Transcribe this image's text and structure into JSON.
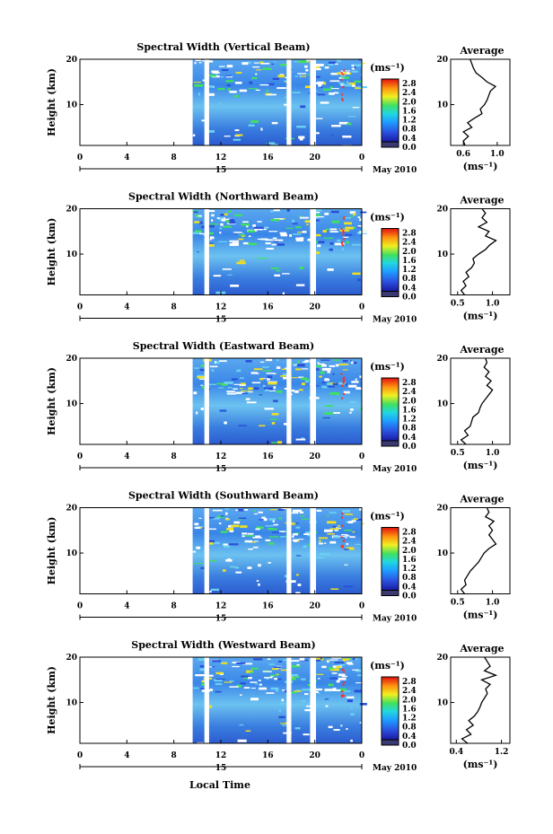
{
  "page": {
    "xlabel": "Local Time"
  },
  "chart_data": [
    {
      "type": "heatmap",
      "title": "Spectral Width (Vertical Beam)",
      "ylabel": "Height (km)",
      "x_ticks": [
        "0",
        "4",
        "8",
        "12",
        "16",
        "20",
        "0"
      ],
      "y_ticks": [
        "10",
        "20"
      ],
      "xlim": [
        0,
        24
      ],
      "ylim": [
        1,
        20
      ],
      "date_tick": "15",
      "date_label": "May 2010",
      "gaps": [
        [
          10.6,
          11.0
        ],
        [
          17.6,
          18.0
        ],
        [
          19.6,
          20.1
        ]
      ],
      "data_start": 9.6,
      "colorbar": {
        "unit": "(ms⁻¹)",
        "ticks": [
          "2.8",
          "2.4",
          "2.0",
          "1.6",
          "1.2",
          "0.8",
          "0.4",
          "0.0"
        ]
      },
      "average": {
        "title": "Average",
        "xlabel": "(ms⁻¹)",
        "x_ticks": [
          "0.6",
          "1.0"
        ],
        "y_ticks": [
          "10",
          "20"
        ],
        "xlim": [
          0.45,
          1.15
        ],
        "profile": [
          [
            1,
            0.62
          ],
          [
            2,
            0.6
          ],
          [
            3,
            0.66
          ],
          [
            4,
            0.6
          ],
          [
            5,
            0.7
          ],
          [
            6,
            0.65
          ],
          [
            7,
            0.73
          ],
          [
            8,
            0.82
          ],
          [
            9,
            0.8
          ],
          [
            10,
            0.85
          ],
          [
            11,
            0.88
          ],
          [
            12,
            0.9
          ],
          [
            13,
            0.92
          ],
          [
            14,
            0.98
          ],
          [
            15,
            0.88
          ],
          [
            16,
            0.82
          ],
          [
            17,
            0.75
          ],
          [
            18,
            0.72
          ],
          [
            19,
            0.7
          ],
          [
            20,
            0.68
          ]
        ]
      }
    },
    {
      "type": "heatmap",
      "title": "Spectral Width (Northward Beam)",
      "ylabel": "Height (km)",
      "x_ticks": [
        "0",
        "4",
        "8",
        "12",
        "16",
        "20",
        "0"
      ],
      "y_ticks": [
        "10",
        "20"
      ],
      "xlim": [
        0,
        24
      ],
      "ylim": [
        1,
        20
      ],
      "date_tick": "15",
      "date_label": "May 2010",
      "gaps": [
        [
          10.6,
          11.0
        ],
        [
          19.6,
          20.1
        ]
      ],
      "data_start": 9.6,
      "colorbar": {
        "unit": "(ms⁻¹)",
        "ticks": [
          "2.8",
          "2.4",
          "2.0",
          "1.6",
          "1.2",
          "0.8",
          "0.4",
          "0.0"
        ]
      },
      "average": {
        "title": "Average",
        "xlabel": "(ms⁻¹)",
        "x_ticks": [
          "0.5",
          "1.0"
        ],
        "y_ticks": [
          "10",
          "20"
        ],
        "xlim": [
          0.4,
          1.25
        ],
        "profile": [
          [
            1,
            0.6
          ],
          [
            2,
            0.55
          ],
          [
            3,
            0.62
          ],
          [
            4,
            0.58
          ],
          [
            5,
            0.66
          ],
          [
            6,
            0.62
          ],
          [
            7,
            0.7
          ],
          [
            8,
            0.74
          ],
          [
            9,
            0.72
          ],
          [
            10,
            0.8
          ],
          [
            11,
            0.9
          ],
          [
            12,
            0.96
          ],
          [
            13,
            1.05
          ],
          [
            14,
            0.9
          ],
          [
            15,
            0.95
          ],
          [
            16,
            0.8
          ],
          [
            17,
            0.92
          ],
          [
            18,
            0.85
          ],
          [
            19,
            0.9
          ],
          [
            20,
            0.85
          ]
        ]
      }
    },
    {
      "type": "heatmap",
      "title": "Spectral Width (Eastward Beam)",
      "ylabel": "Height (km)",
      "x_ticks": [
        "0",
        "4",
        "8",
        "12",
        "16",
        "20",
        "0"
      ],
      "y_ticks": [
        "10",
        "20"
      ],
      "xlim": [
        0,
        24
      ],
      "ylim": [
        1,
        20
      ],
      "date_tick": "15",
      "date_label": "May 2010",
      "gaps": [
        [
          10.6,
          11.0
        ],
        [
          17.6,
          18.0
        ],
        [
          19.6,
          20.1
        ]
      ],
      "data_start": 9.6,
      "colorbar": {
        "unit": "(ms⁻¹)",
        "ticks": [
          "2.8",
          "2.4",
          "2.0",
          "1.6",
          "1.2",
          "0.8",
          "0.4",
          "0.0"
        ]
      },
      "average": {
        "title": "Average",
        "xlabel": "(ms⁻¹)",
        "x_ticks": [
          "0.5",
          "1.0"
        ],
        "y_ticks": [
          "10",
          "20"
        ],
        "xlim": [
          0.4,
          1.25
        ],
        "profile": [
          [
            1,
            0.62
          ],
          [
            2,
            0.55
          ],
          [
            3,
            0.65
          ],
          [
            4,
            0.6
          ],
          [
            5,
            0.68
          ],
          [
            6,
            0.7
          ],
          [
            7,
            0.72
          ],
          [
            8,
            0.8
          ],
          [
            9,
            0.82
          ],
          [
            10,
            0.85
          ],
          [
            11,
            0.9
          ],
          [
            12,
            0.95
          ],
          [
            13,
            1.0
          ],
          [
            14,
            0.92
          ],
          [
            15,
            0.98
          ],
          [
            16,
            0.9
          ],
          [
            17,
            0.95
          ],
          [
            18,
            0.88
          ],
          [
            19,
            0.92
          ],
          [
            20,
            0.9
          ]
        ]
      }
    },
    {
      "type": "heatmap",
      "title": "Spectral Width (Southward Beam)",
      "ylabel": "Height (km)",
      "x_ticks": [
        "0",
        "4",
        "8",
        "12",
        "16",
        "20",
        "0"
      ],
      "y_ticks": [
        "10",
        "20"
      ],
      "xlim": [
        0,
        24
      ],
      "ylim": [
        1,
        20
      ],
      "date_tick": "15",
      "date_label": "May 2010",
      "gaps": [
        [
          10.6,
          11.0
        ],
        [
          17.6,
          18.0
        ],
        [
          19.6,
          20.1
        ]
      ],
      "data_start": 9.6,
      "colorbar": {
        "unit": "(ms⁻¹)",
        "ticks": [
          "2.8",
          "2.4",
          "2.0",
          "1.6",
          "1.2",
          "0.8",
          "0.4",
          "0.0"
        ]
      },
      "average": {
        "title": "Average",
        "xlabel": "(ms⁻¹)",
        "x_ticks": [
          "0.5",
          "1.0"
        ],
        "y_ticks": [
          "10",
          "20"
        ],
        "xlim": [
          0.4,
          1.25
        ],
        "profile": [
          [
            1,
            0.6
          ],
          [
            2,
            0.55
          ],
          [
            3,
            0.62
          ],
          [
            4,
            0.6
          ],
          [
            5,
            0.64
          ],
          [
            6,
            0.68
          ],
          [
            7,
            0.74
          ],
          [
            8,
            0.8
          ],
          [
            9,
            0.84
          ],
          [
            10,
            0.88
          ],
          [
            11,
            0.95
          ],
          [
            12,
            1.05
          ],
          [
            13,
            1.0
          ],
          [
            14,
            0.95
          ],
          [
            15,
            1.0
          ],
          [
            16,
            0.95
          ],
          [
            17,
            1.02
          ],
          [
            18,
            0.9
          ],
          [
            19,
            0.95
          ],
          [
            20,
            0.92
          ]
        ]
      }
    },
    {
      "type": "heatmap",
      "title": "Spectral Width (Westward Beam)",
      "ylabel": "Height (km)",
      "x_ticks": [
        "0",
        "4",
        "8",
        "12",
        "16",
        "20",
        "0"
      ],
      "y_ticks": [
        "10",
        "20"
      ],
      "xlim": [
        0,
        24
      ],
      "ylim": [
        1,
        20
      ],
      "date_tick": "15",
      "date_label": "May 2010",
      "gaps": [
        [
          10.6,
          11.0
        ],
        [
          17.6,
          18.0
        ],
        [
          19.6,
          20.1
        ]
      ],
      "data_start": 9.6,
      "colorbar": {
        "unit": "(ms⁻¹)",
        "ticks": [
          "2.8",
          "2.4",
          "2.0",
          "1.6",
          "1.2",
          "0.8",
          "0.4",
          "0.0"
        ]
      },
      "average": {
        "title": "Average",
        "xlabel": "(ms⁻¹)",
        "x_ticks": [
          "0.4",
          "1.2"
        ],
        "y_ticks": [
          "10",
          "20"
        ],
        "xlim": [
          0.3,
          1.35
        ],
        "profile": [
          [
            1,
            0.6
          ],
          [
            2,
            0.5
          ],
          [
            3,
            0.66
          ],
          [
            4,
            0.58
          ],
          [
            5,
            0.7
          ],
          [
            6,
            0.62
          ],
          [
            7,
            0.72
          ],
          [
            8,
            0.78
          ],
          [
            9,
            0.82
          ],
          [
            10,
            0.85
          ],
          [
            11,
            0.9
          ],
          [
            12,
            0.95
          ],
          [
            13,
            0.92
          ],
          [
            14,
            1.0
          ],
          [
            15,
            0.85
          ],
          [
            16,
            1.1
          ],
          [
            17,
            0.9
          ],
          [
            18,
            1.0
          ],
          [
            19,
            0.95
          ],
          [
            20,
            0.9
          ]
        ]
      }
    }
  ]
}
